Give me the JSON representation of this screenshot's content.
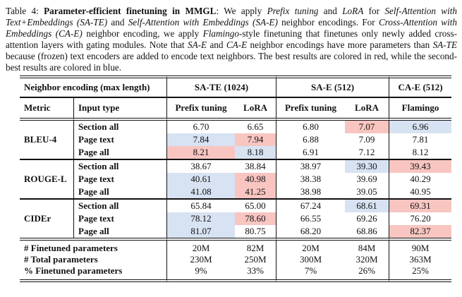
{
  "caption": {
    "segments": [
      {
        "text": "Table 4: ",
        "style": "normal"
      },
      {
        "text": "Parameter-efficient finetuning in MMGL",
        "style": "bold"
      },
      {
        "text": ": We apply ",
        "style": "normal"
      },
      {
        "text": "Prefix tuning",
        "style": "italic"
      },
      {
        "text": " and ",
        "style": "normal"
      },
      {
        "text": "LoRA",
        "style": "italic"
      },
      {
        "text": " for ",
        "style": "normal"
      },
      {
        "text": "Self-Attention with Text+Embeddings (SA-TE)",
        "style": "italic"
      },
      {
        "text": " and ",
        "style": "normal"
      },
      {
        "text": "Self-Attention with Embeddings (SA-E)",
        "style": "italic"
      },
      {
        "text": " neighbor encodings. For ",
        "style": "normal"
      },
      {
        "text": "Cross-Attention with Embeddings (CA-E)",
        "style": "italic"
      },
      {
        "text": " neighbor encoding, we apply ",
        "style": "normal"
      },
      {
        "text": "Flamingo",
        "style": "italic"
      },
      {
        "text": "-style finetuning that finetunes only newly added cross-attention layers with gating modules. Note that ",
        "style": "normal"
      },
      {
        "text": "SA-E",
        "style": "italic"
      },
      {
        "text": " and ",
        "style": "normal"
      },
      {
        "text": "CA-E",
        "style": "italic"
      },
      {
        "text": " neighbor encodings have more parameters than ",
        "style": "normal"
      },
      {
        "text": "SA-TE",
        "style": "italic"
      },
      {
        "text": " because (frozen) text encoders are added to encode text neighbors. The best results are colored in red, while the second-best results are colored in blue.",
        "style": "normal"
      }
    ]
  },
  "table": {
    "header": {
      "group_row": [
        {
          "label": "Neighbor encoding (max length)",
          "span": 2
        },
        {
          "label": "SA-TE (1024)",
          "span": 2
        },
        {
          "label": "SA-E (512)",
          "span": 2
        },
        {
          "label": "CA-E (512)",
          "span": 1
        }
      ],
      "column_row": [
        "Metric",
        "Input type",
        "Prefix tuning",
        "LoRA",
        "Prefix tuning",
        "LoRA",
        "Flamingo"
      ]
    },
    "highlight_colors": {
      "best": "#f8c5c1",
      "second_best": "#d7e2f2"
    },
    "highlight_legend": {
      "best": "red = best result",
      "second_best": "blue = second-best result"
    },
    "metric_groups": [
      {
        "metric": "BLEU-4",
        "rows": [
          {
            "input_type": "Section all",
            "values": [
              "6.70",
              "6.65",
              "6.80",
              "7.07",
              "6.96"
            ],
            "marks": [
              null,
              null,
              null,
              "best",
              "second"
            ]
          },
          {
            "input_type": "Page text",
            "values": [
              "7.84",
              "7.94",
              "6.88",
              "7.09",
              "7.81"
            ],
            "marks": [
              "second",
              "best",
              null,
              null,
              null
            ]
          },
          {
            "input_type": "Page all",
            "values": [
              "8.21",
              "8.18",
              "6.91",
              "7.12",
              "8.12"
            ],
            "marks": [
              "best",
              "second",
              null,
              null,
              null
            ]
          }
        ]
      },
      {
        "metric": "ROUGE-L",
        "rows": [
          {
            "input_type": "Section all",
            "values": [
              "38.67",
              "38.84",
              "38.97",
              "39.30",
              "39.43"
            ],
            "marks": [
              null,
              null,
              null,
              "second",
              "best"
            ]
          },
          {
            "input_type": "Page text",
            "values": [
              "40.61",
              "40.98",
              "38.38",
              "39.69",
              "40.29"
            ],
            "marks": [
              "second",
              "best",
              null,
              null,
              null
            ]
          },
          {
            "input_type": "Page all",
            "values": [
              "41.08",
              "41.25",
              "38.98",
              "39.05",
              "40.95"
            ],
            "marks": [
              "second",
              "best",
              null,
              null,
              null
            ]
          }
        ]
      },
      {
        "metric": "CIDEr",
        "rows": [
          {
            "input_type": "Section all",
            "values": [
              "65.84",
              "65.00",
              "67.24",
              "68.61",
              "69.31"
            ],
            "marks": [
              null,
              null,
              null,
              "second",
              "best"
            ]
          },
          {
            "input_type": "Page text",
            "values": [
              "78.12",
              "78.60",
              "66.55",
              "69.26",
              "76.20"
            ],
            "marks": [
              "second",
              "best",
              null,
              null,
              null
            ]
          },
          {
            "input_type": "Page all",
            "values": [
              "81.07",
              "80.75",
              "68.20",
              "68.86",
              "82.37"
            ],
            "marks": [
              "second",
              null,
              null,
              null,
              "best"
            ]
          }
        ]
      }
    ],
    "param_rows": [
      {
        "label": "# Finetuned parameters",
        "values": [
          "20M",
          "82M",
          "20M",
          "84M",
          "90M"
        ]
      },
      {
        "label": "# Total parameters",
        "values": [
          "230M",
          "250M",
          "300M",
          "320M",
          "363M"
        ]
      },
      {
        "label": "% Finetuned parameters",
        "values": [
          "9%",
          "33%",
          "7%",
          "26%",
          "25%"
        ]
      }
    ]
  }
}
